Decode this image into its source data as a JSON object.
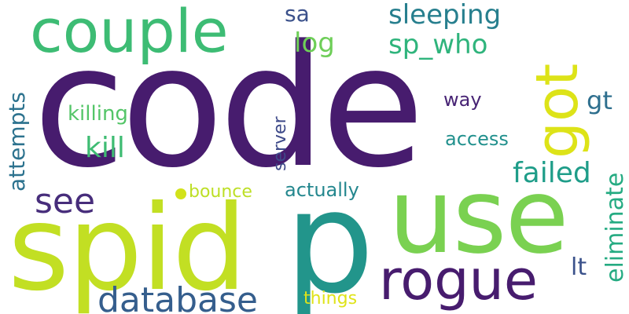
{
  "words": {
    "code": {
      "text": "code",
      "color": "#471c6e"
    },
    "spid": {
      "text": "spid",
      "color": "#c2df23"
    },
    "p": {
      "text": "p",
      "color": "#22958b"
    },
    "use": {
      "text": "use",
      "color": "#7ad151"
    },
    "rogue": {
      "text": "rogue",
      "color": "#471c6e"
    },
    "couple": {
      "text": "couple",
      "color": "#3dbc74"
    },
    "database": {
      "text": "database",
      "color": "#355e8d"
    },
    "got": {
      "text": "got",
      "color": "#dde318"
    },
    "see": {
      "text": "see",
      "color": "#472d7b"
    },
    "sleeping": {
      "text": "sleeping",
      "color": "#277f8e"
    },
    "sp_who": {
      "text": "sp_who",
      "color": "#2fb47c"
    },
    "attempts": {
      "text": "attempts",
      "color": "#2c728e"
    },
    "kill": {
      "text": "kill",
      "color": "#3fbc73"
    },
    "failed": {
      "text": "failed",
      "color": "#1f9d89"
    },
    "eliminate": {
      "text": "eliminate",
      "color": "#25ab82"
    },
    "sa": {
      "text": "sa",
      "color": "#3b518b"
    },
    "log": {
      "text": "log",
      "color": "#6ece58"
    },
    "killing": {
      "text": "killing",
      "color": "#54c568"
    },
    "gt": {
      "text": "gt",
      "color": "#2e6f8e"
    },
    "way": {
      "text": "way",
      "color": "#482475"
    },
    "server": {
      "text": "server",
      "color": "#3e4a89"
    },
    "access": {
      "text": "access",
      "color": "#21908d"
    },
    "bounce": {
      "text": "bounce",
      "color": "#bddf26"
    },
    "actually": {
      "text": "actually",
      "color": "#24878e"
    },
    "lt": {
      "text": "lt",
      "color": "#3b528b"
    },
    "things": {
      "text": "things",
      "color": "#dfe318"
    }
  },
  "dot_color": "#d2e21b"
}
